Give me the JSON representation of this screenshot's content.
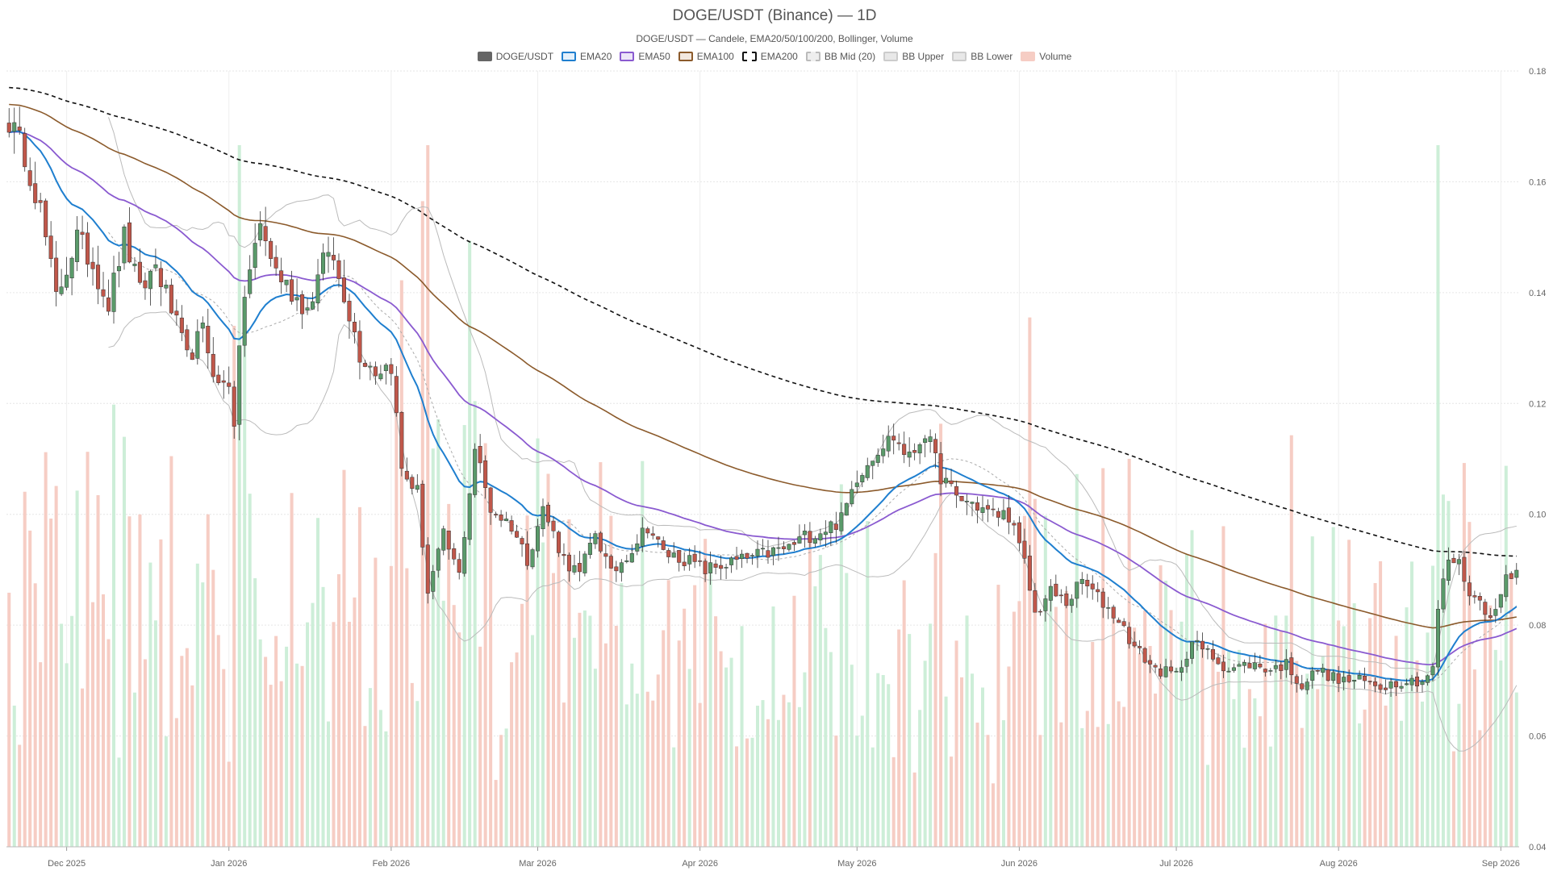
{
  "chart_data": {
    "type": "candlestick",
    "title": "DOGE/USDT (Binance) — 1D",
    "subtitle": "DOGE/USDT — Candele, EMA20/50/100/200, Bollinger, Volume",
    "legend": [
      {
        "label": "DOGE/USDT",
        "fill": "#666666",
        "stroke": "#666666",
        "dash": false
      },
      {
        "label": "EMA20",
        "fill": "#e3f0fb",
        "stroke": "#1f7fcf",
        "dash": false
      },
      {
        "label": "EMA50",
        "fill": "#ece5f8",
        "stroke": "#8a5ad0",
        "dash": false
      },
      {
        "label": "EMA100",
        "fill": "#f3e8df",
        "stroke": "#8b5a2b",
        "dash": false
      },
      {
        "label": "EMA200",
        "fill": "#ffffff",
        "stroke": "#111111",
        "dash": true
      },
      {
        "label": "BB Mid (20)",
        "fill": "#eeeeee",
        "stroke": "#bbbbbb",
        "dash": true
      },
      {
        "label": "BB Upper",
        "fill": "#e8e8e8",
        "stroke": "#cccccc",
        "dash": false
      },
      {
        "label": "BB Lower",
        "fill": "#e8e8e8",
        "stroke": "#cccccc",
        "dash": false
      },
      {
        "label": "Volume",
        "fill": "#f6cdc4",
        "stroke": "#f6cdc4",
        "dash": false
      }
    ],
    "x_range": [
      "2025-11-20",
      "2026-09-04"
    ],
    "ylim": [
      0.04,
      0.18
    ],
    "y_ticks": [
      0.04,
      0.06,
      0.08,
      0.1,
      0.12,
      0.14,
      0.16,
      0.18
    ],
    "y_tick_labels": [
      "0.04",
      "0.06",
      "0.08",
      "0.10",
      "0.12",
      "0.14",
      "0.16",
      "0.18"
    ],
    "x_ticks": [
      {
        "date": "2025-12-01",
        "label": "Dec 2025"
      },
      {
        "date": "2026-01-01",
        "label": "Jan 2026"
      },
      {
        "date": "2026-02-01",
        "label": "Feb 2026"
      },
      {
        "date": "2026-03-01",
        "label": "Mar 2026"
      },
      {
        "date": "2026-04-01",
        "label": "Apr 2026"
      },
      {
        "date": "2026-05-01",
        "label": "May 2026"
      },
      {
        "date": "2026-06-01",
        "label": "Jun 2026"
      },
      {
        "date": "2026-07-01",
        "label": "Jul 2026"
      },
      {
        "date": "2026-08-01",
        "label": "Aug 2026"
      },
      {
        "date": "2026-09-01",
        "label": "Sep 2026"
      }
    ],
    "grid": true,
    "colors": {
      "up": "#5a9a6a",
      "down": "#c0574a",
      "vol_up": "#cdeed8",
      "vol_down": "#f6cdc4",
      "ema20": "#1f7fcf",
      "ema50": "#8a5ad0",
      "ema100": "#8b5a2b",
      "ema200": "#111111",
      "bb_mid": "#aaaaaa",
      "bb_band": "#bbbbbb"
    },
    "close_anchors": [
      [
        "2025-11-20",
        0.171
      ],
      [
        "2025-11-23",
        0.165
      ],
      [
        "2025-11-26",
        0.155
      ],
      [
        "2025-11-29",
        0.139
      ],
      [
        "2025-12-03",
        0.15
      ],
      [
        "2025-12-06",
        0.145
      ],
      [
        "2025-12-09",
        0.138
      ],
      [
        "2025-12-12",
        0.15
      ],
      [
        "2025-12-15",
        0.14
      ],
      [
        "2025-12-18",
        0.145
      ],
      [
        "2025-12-21",
        0.137
      ],
      [
        "2025-12-24",
        0.128
      ],
      [
        "2025-12-27",
        0.133
      ],
      [
        "2025-12-30",
        0.123
      ],
      [
        "2026-01-01",
        0.124
      ],
      [
        "2026-01-02",
        0.117
      ],
      [
        "2026-01-04",
        0.14
      ],
      [
        "2026-01-07",
        0.152
      ],
      [
        "2026-01-10",
        0.144
      ],
      [
        "2026-01-13",
        0.14
      ],
      [
        "2026-01-16",
        0.137
      ],
      [
        "2026-01-20",
        0.148
      ],
      [
        "2026-01-23",
        0.14
      ],
      [
        "2026-01-26",
        0.129
      ],
      [
        "2026-01-29",
        0.126
      ],
      [
        "2026-02-01",
        0.127
      ],
      [
        "2026-02-03",
        0.108
      ],
      [
        "2026-02-06",
        0.104
      ],
      [
        "2026-02-08",
        0.086
      ],
      [
        "2026-02-11",
        0.096
      ],
      [
        "2026-02-14",
        0.089
      ],
      [
        "2026-02-17",
        0.112
      ],
      [
        "2026-02-20",
        0.101
      ],
      [
        "2026-02-24",
        0.098
      ],
      [
        "2026-02-27",
        0.092
      ],
      [
        "2026-03-02",
        0.101
      ],
      [
        "2026-03-06",
        0.092
      ],
      [
        "2026-03-09",
        0.089
      ],
      [
        "2026-03-12",
        0.097
      ],
      [
        "2026-03-15",
        0.089
      ],
      [
        "2026-03-19",
        0.094
      ],
      [
        "2026-03-22",
        0.098
      ],
      [
        "2026-03-25",
        0.093
      ],
      [
        "2026-03-29",
        0.092
      ],
      [
        "2026-04-02",
        0.09
      ],
      [
        "2026-04-06",
        0.091
      ],
      [
        "2026-04-10",
        0.092
      ],
      [
        "2026-04-14",
        0.093
      ],
      [
        "2026-04-18",
        0.094
      ],
      [
        "2026-04-21",
        0.096
      ],
      [
        "2026-04-24",
        0.097
      ],
      [
        "2026-04-28",
        0.099
      ],
      [
        "2026-05-01",
        0.107
      ],
      [
        "2026-05-05",
        0.112
      ],
      [
        "2026-05-08",
        0.114
      ],
      [
        "2026-05-11",
        0.11
      ],
      [
        "2026-05-14",
        0.115
      ],
      [
        "2026-05-17",
        0.107
      ],
      [
        "2026-05-20",
        0.103
      ],
      [
        "2026-05-23",
        0.102
      ],
      [
        "2026-05-27",
        0.1
      ],
      [
        "2026-05-30",
        0.1
      ],
      [
        "2026-06-02",
        0.091
      ],
      [
        "2026-06-04",
        0.082
      ],
      [
        "2026-06-07",
        0.086
      ],
      [
        "2026-06-10",
        0.084
      ],
      [
        "2026-06-13",
        0.088
      ],
      [
        "2026-06-16",
        0.085
      ],
      [
        "2026-06-20",
        0.081
      ],
      [
        "2026-06-23",
        0.076
      ],
      [
        "2026-06-27",
        0.072
      ],
      [
        "2026-07-01",
        0.071
      ],
      [
        "2026-07-04",
        0.077
      ],
      [
        "2026-07-07",
        0.075
      ],
      [
        "2026-07-11",
        0.072
      ],
      [
        "2026-07-15",
        0.073
      ],
      [
        "2026-07-19",
        0.072
      ],
      [
        "2026-07-22",
        0.073
      ],
      [
        "2026-07-25",
        0.069
      ],
      [
        "2026-07-28",
        0.072
      ],
      [
        "2026-08-01",
        0.07
      ],
      [
        "2026-08-05",
        0.07
      ],
      [
        "2026-08-09",
        0.069
      ],
      [
        "2026-08-13",
        0.07
      ],
      [
        "2026-08-17",
        0.07
      ],
      [
        "2026-08-19",
        0.072
      ],
      [
        "2026-08-20",
        0.083
      ],
      [
        "2026-08-22",
        0.092
      ],
      [
        "2026-08-24",
        0.091
      ],
      [
        "2026-08-26",
        0.086
      ],
      [
        "2026-08-29",
        0.083
      ],
      [
        "2026-08-31",
        0.082
      ],
      [
        "2026-09-02",
        0.089
      ],
      [
        "2026-09-04",
        0.09
      ]
    ]
  }
}
